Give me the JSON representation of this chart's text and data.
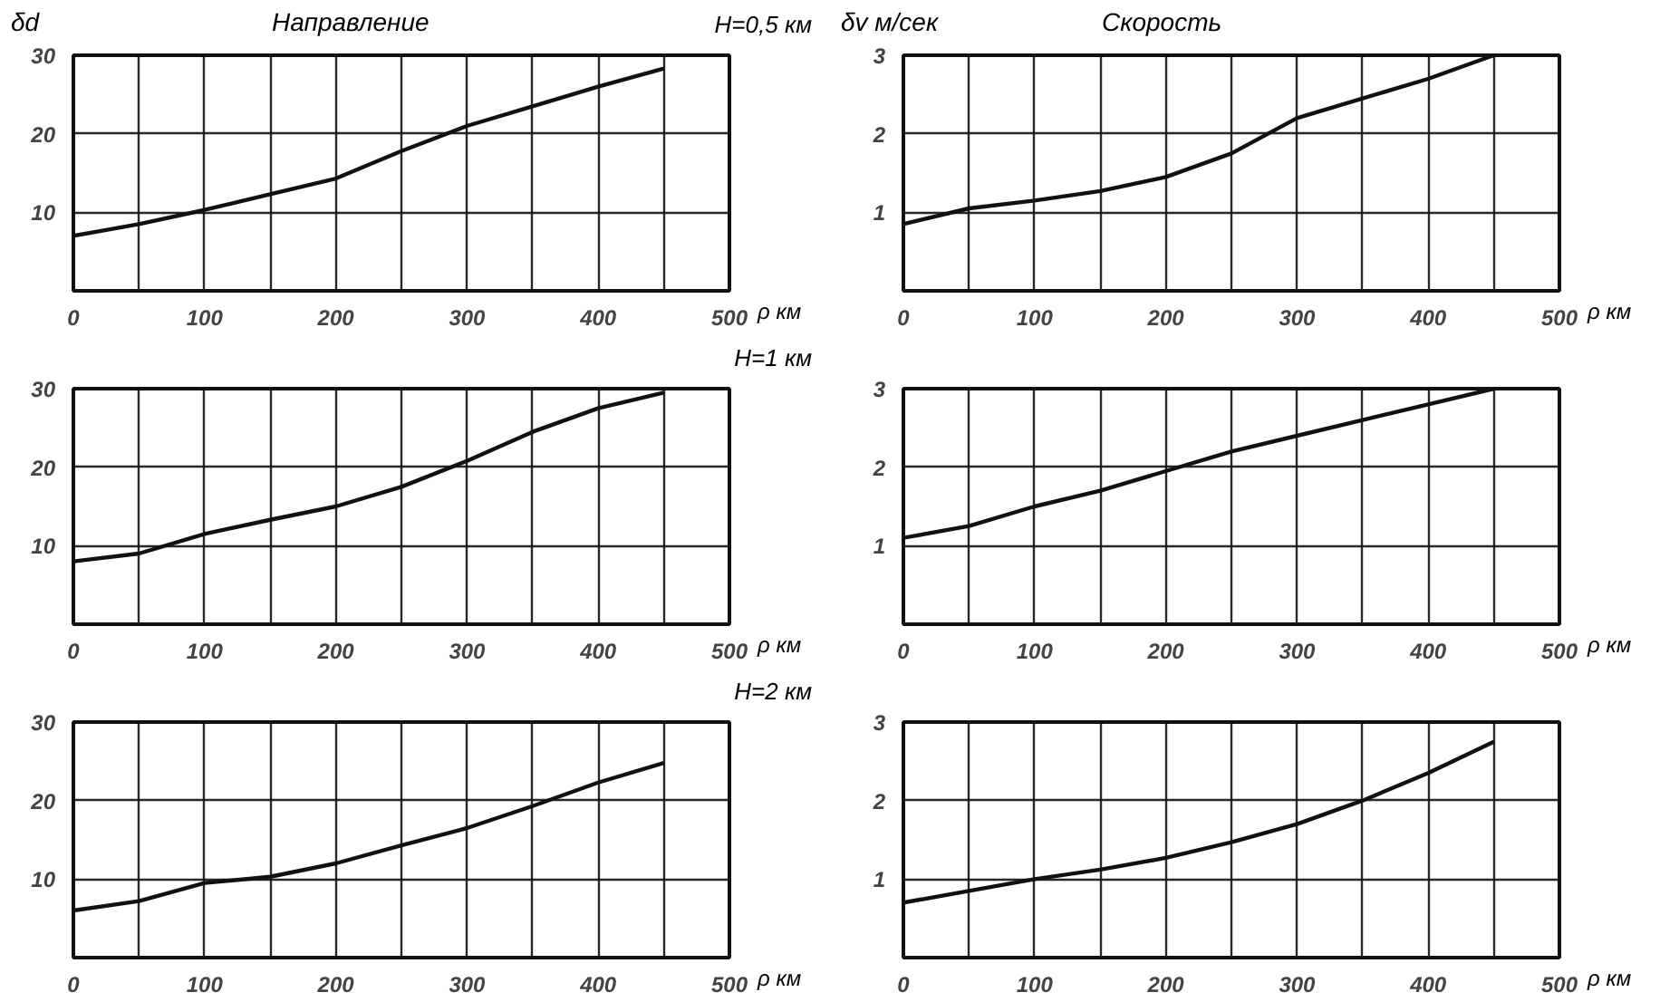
{
  "chart_data": [
    {
      "type": "line",
      "title": "Направление",
      "ylabel": "δd",
      "subtitle": "H=0,5 км",
      "xlabel": "ρ км",
      "x": [
        0,
        50,
        100,
        150,
        200,
        250,
        300,
        350,
        400,
        450
      ],
      "series": [
        {
          "color": "#111111",
          "values": [
            7.0,
            8.5,
            10.3,
            12.3,
            14.3,
            17.8,
            21.0,
            23.5,
            26.0,
            28.3
          ]
        }
      ],
      "xlim": [
        0,
        500
      ],
      "ylim": [
        0,
        30
      ],
      "xticks": [
        0,
        {
          "value": 50,
          "label": null
        },
        100,
        {
          "value": 150,
          "label": null
        },
        200,
        {
          "value": 250,
          "label": null
        },
        300,
        {
          "value": 350,
          "label": null
        },
        400,
        {
          "value": 450,
          "label": null
        },
        500
      ],
      "yticks": [
        10,
        20,
        30
      ],
      "grid": true
    },
    {
      "type": "line",
      "title": "Скорость",
      "ylabel": "δv м/сек",
      "xlabel": "ρ км",
      "x": [
        0,
        50,
        100,
        150,
        200,
        250,
        300,
        350,
        400,
        450
      ],
      "series": [
        {
          "color": "#111111",
          "values": [
            0.85,
            1.05,
            1.15,
            1.27,
            1.45,
            1.75,
            2.2,
            2.45,
            2.7,
            3.0
          ]
        }
      ],
      "xlim": [
        0,
        500
      ],
      "ylim": [
        0,
        3
      ],
      "xticks": [
        0,
        {
          "value": 50,
          "label": null
        },
        100,
        {
          "value": 150,
          "label": null
        },
        200,
        {
          "value": 250,
          "label": null
        },
        300,
        {
          "value": 350,
          "label": null
        },
        400,
        {
          "value": 450,
          "label": null
        },
        500
      ],
      "yticks": [
        1,
        2,
        3
      ],
      "grid": true
    },
    {
      "type": "line",
      "subtitle": "H=1 км",
      "xlabel": "ρ км",
      "x": [
        0,
        50,
        100,
        150,
        200,
        250,
        300,
        350,
        400,
        450
      ],
      "series": [
        {
          "color": "#111111",
          "values": [
            8.0,
            9.0,
            11.5,
            13.3,
            15.0,
            17.5,
            20.8,
            24.5,
            27.5,
            29.5
          ]
        }
      ],
      "xlim": [
        0,
        500
      ],
      "ylim": [
        0,
        30
      ],
      "xticks": [
        0,
        {
          "value": 50,
          "label": null
        },
        100,
        {
          "value": 150,
          "label": null
        },
        200,
        {
          "value": 250,
          "label": null
        },
        300,
        {
          "value": 350,
          "label": null
        },
        400,
        {
          "value": 450,
          "label": null
        },
        500
      ],
      "yticks": [
        10,
        20,
        30
      ],
      "grid": true
    },
    {
      "type": "line",
      "xlabel": "ρ км",
      "x": [
        0,
        50,
        100,
        150,
        200,
        250,
        300,
        350,
        400,
        450
      ],
      "series": [
        {
          "color": "#111111",
          "values": [
            1.1,
            1.25,
            1.5,
            1.7,
            1.95,
            2.2,
            2.4,
            2.6,
            2.8,
            3.0
          ]
        }
      ],
      "xlim": [
        0,
        500
      ],
      "ylim": [
        0,
        3
      ],
      "xticks": [
        0,
        {
          "value": 50,
          "label": null
        },
        100,
        {
          "value": 150,
          "label": null
        },
        200,
        {
          "value": 250,
          "label": null
        },
        300,
        {
          "value": 350,
          "label": null
        },
        400,
        {
          "value": 450,
          "label": null
        },
        500
      ],
      "yticks": [
        1,
        2,
        3
      ],
      "grid": true
    },
    {
      "type": "line",
      "subtitle": "H=2 км",
      "xlabel": "ρ км",
      "x": [
        0,
        50,
        100,
        150,
        200,
        250,
        300,
        350,
        400,
        450
      ],
      "series": [
        {
          "color": "#111111",
          "values": [
            6.0,
            7.2,
            9.5,
            10.3,
            12.0,
            14.3,
            16.5,
            19.3,
            22.3,
            24.8
          ]
        }
      ],
      "xlim": [
        0,
        500
      ],
      "ylim": [
        0,
        30
      ],
      "xticks": [
        0,
        {
          "value": 50,
          "label": null
        },
        100,
        {
          "value": 150,
          "label": null
        },
        200,
        {
          "value": 250,
          "label": null
        },
        300,
        {
          "value": 350,
          "label": null
        },
        400,
        {
          "value": 450,
          "label": null
        },
        500
      ],
      "yticks": [
        10,
        20,
        30
      ],
      "grid": true
    },
    {
      "type": "line",
      "xlabel": "ρ км",
      "x": [
        0,
        50,
        100,
        150,
        200,
        250,
        300,
        350,
        400,
        450
      ],
      "series": [
        {
          "color": "#111111",
          "values": [
            0.7,
            0.85,
            1.0,
            1.12,
            1.27,
            1.47,
            1.7,
            2.0,
            2.35,
            2.75
          ]
        }
      ],
      "xlim": [
        0,
        500
      ],
      "ylim": [
        0,
        3
      ],
      "xticks": [
        0,
        {
          "value": 50,
          "label": null
        },
        100,
        {
          "value": 150,
          "label": null
        },
        200,
        {
          "value": 250,
          "label": null
        },
        300,
        {
          "value": 350,
          "label": null
        },
        400,
        {
          "value": 450,
          "label": null
        },
        500
      ],
      "yticks": [
        1,
        2,
        3
      ],
      "grid": true
    }
  ]
}
